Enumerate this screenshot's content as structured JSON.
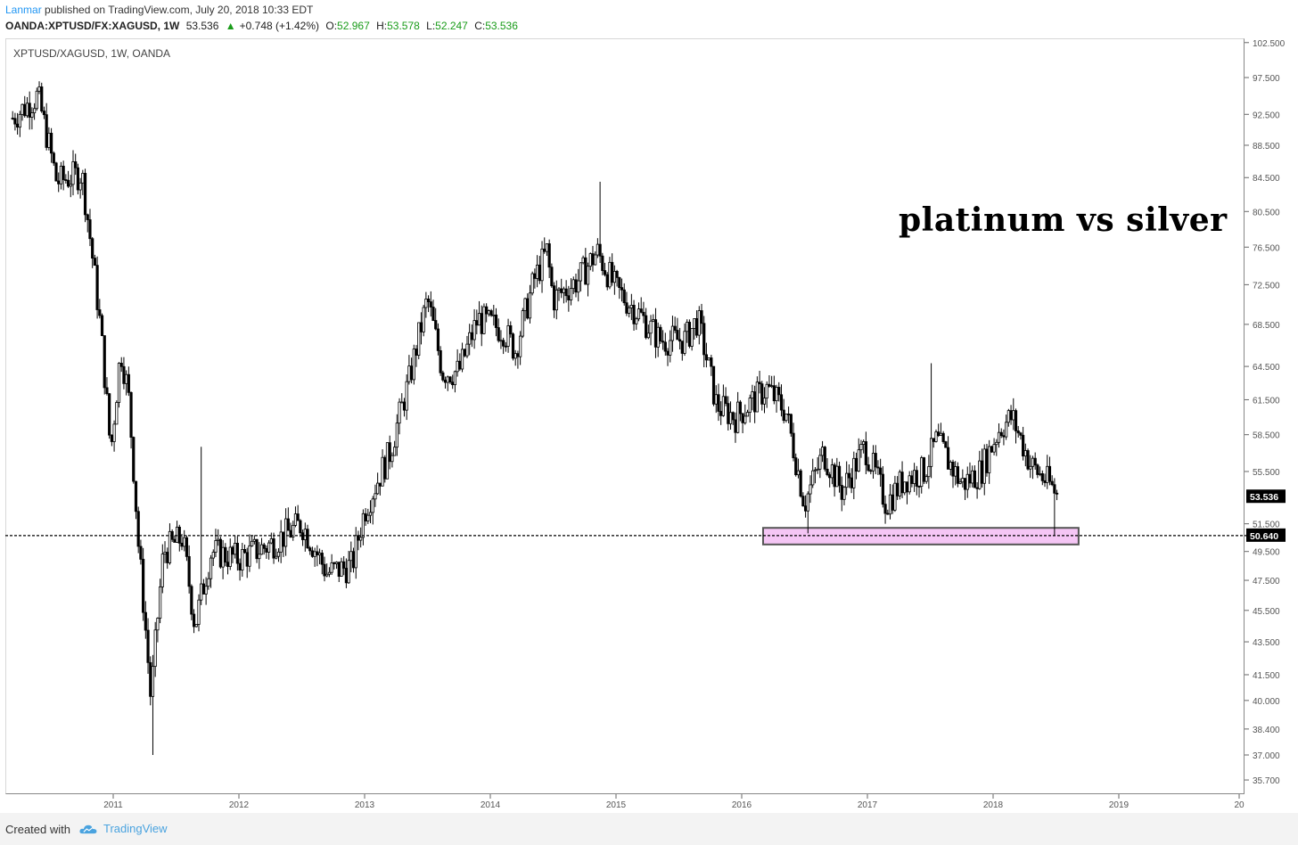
{
  "header": {
    "author": "Lanmar",
    "published_text": "published on TradingView.com, July 20, 2018 10:33 EDT",
    "symbol_line": "OANDA:XPTUSD/FX:XAGUSD, 1W",
    "last": "53.536",
    "change": "+0.748 (+1.42%)",
    "open_label": "O:",
    "open": "52.967",
    "high_label": "H:",
    "high": "53.578",
    "low_label": "L:",
    "low": "52.247",
    "close_label": "C:",
    "close": "53.536"
  },
  "chart": {
    "symbol_title": "XPTUSD/XAGUSD, 1W, OANDA",
    "annotation": "platinum vs silver",
    "last_price_label": "53.536",
    "level_label": "50.640"
  },
  "footer": {
    "created_with": "Created with",
    "brand": "TradingView"
  },
  "colors": {
    "candle": "#000000",
    "support_line": "#000000",
    "support_zone_fill": "#f5c6f5",
    "support_zone_border": "#555555",
    "brand": "#4aa3df",
    "up_text": "#1a9c1a"
  },
  "chart_data": {
    "type": "candlestick",
    "title": "XPTUSD/XAGUSD, 1W, OANDA",
    "xlabel": "",
    "ylabel": "",
    "ylim": [
      35.0,
      102.5
    ],
    "y_scale": "log",
    "x_ticks": [
      "2011",
      "2012",
      "2013",
      "2014",
      "2015",
      "2016",
      "2017",
      "2018",
      "2019",
      "20"
    ],
    "y_ticks": [
      "102.500",
      "97.500",
      "92.500",
      "88.500",
      "84.500",
      "80.500",
      "76.500",
      "72.500",
      "68.500",
      "64.500",
      "61.500",
      "58.500",
      "55.500",
      "53.536",
      "51.500",
      "50.640",
      "49.500",
      "47.500",
      "45.500",
      "43.500",
      "41.500",
      "40.000",
      "38.400",
      "37.000",
      "35.700"
    ],
    "support_level": 50.64,
    "last_close": 53.536,
    "support_zone": {
      "from_year": 2016.17,
      "to_year": 2018.68,
      "low": 50.0,
      "high": 51.2
    },
    "anchors": [
      {
        "t": 2010.2,
        "v": 92.0
      },
      {
        "t": 2010.4,
        "v": 95.0
      },
      {
        "t": 2010.55,
        "v": 84.0
      },
      {
        "t": 2010.75,
        "v": 85.0
      },
      {
        "t": 2010.9,
        "v": 68.0
      },
      {
        "t": 2010.98,
        "v": 57.0
      },
      {
        "t": 2011.06,
        "v": 66.0
      },
      {
        "t": 2011.12,
        "v": 62.0
      },
      {
        "t": 2011.2,
        "v": 50.0
      },
      {
        "t": 2011.3,
        "v": 40.0
      },
      {
        "t": 2011.4,
        "v": 49.5
      },
      {
        "t": 2011.55,
        "v": 50.5
      },
      {
        "t": 2011.65,
        "v": 44.5
      },
      {
        "t": 2011.78,
        "v": 49.5
      },
      {
        "t": 2012.0,
        "v": 49.0
      },
      {
        "t": 2012.25,
        "v": 50.0
      },
      {
        "t": 2012.5,
        "v": 51.5
      },
      {
        "t": 2012.7,
        "v": 48.0
      },
      {
        "t": 2012.9,
        "v": 48.5
      },
      {
        "t": 2013.0,
        "v": 52.5
      },
      {
        "t": 2013.2,
        "v": 57.0
      },
      {
        "t": 2013.35,
        "v": 63.0
      },
      {
        "t": 2013.5,
        "v": 71.0
      },
      {
        "t": 2013.62,
        "v": 64.0
      },
      {
        "t": 2013.75,
        "v": 64.0
      },
      {
        "t": 2013.9,
        "v": 69.0
      },
      {
        "t": 2014.1,
        "v": 68.0
      },
      {
        "t": 2014.2,
        "v": 66.0
      },
      {
        "t": 2014.35,
        "v": 73.0
      },
      {
        "t": 2014.45,
        "v": 76.0
      },
      {
        "t": 2014.5,
        "v": 71.0
      },
      {
        "t": 2014.7,
        "v": 73.0
      },
      {
        "t": 2014.85,
        "v": 76.0
      },
      {
        "t": 2015.0,
        "v": 72.0
      },
      {
        "t": 2015.15,
        "v": 70.0
      },
      {
        "t": 2015.35,
        "v": 67.0
      },
      {
        "t": 2015.55,
        "v": 67.0
      },
      {
        "t": 2015.65,
        "v": 69.0
      },
      {
        "t": 2015.8,
        "v": 61.0
      },
      {
        "t": 2015.95,
        "v": 60.0
      },
      {
        "t": 2016.2,
        "v": 62.5
      },
      {
        "t": 2016.35,
        "v": 60.5
      },
      {
        "t": 2016.5,
        "v": 53.0
      },
      {
        "t": 2016.65,
        "v": 57.0
      },
      {
        "t": 2016.8,
        "v": 54.0
      },
      {
        "t": 2016.98,
        "v": 57.5
      },
      {
        "t": 2017.15,
        "v": 53.0
      },
      {
        "t": 2017.3,
        "v": 55.0
      },
      {
        "t": 2017.45,
        "v": 55.5
      },
      {
        "t": 2017.55,
        "v": 58.0
      },
      {
        "t": 2017.75,
        "v": 54.5
      },
      {
        "t": 2017.9,
        "v": 55.5
      },
      {
        "t": 2018.05,
        "v": 59.0
      },
      {
        "t": 2018.15,
        "v": 60.0
      },
      {
        "t": 2018.3,
        "v": 56.0
      },
      {
        "t": 2018.45,
        "v": 54.5
      },
      {
        "t": 2018.52,
        "v": 53.5
      }
    ],
    "spikes": [
      {
        "t": 2011.32,
        "low": 37.0
      },
      {
        "t": 2011.7,
        "high": 57.5
      },
      {
        "t": 2014.88,
        "high": 84.0
      },
      {
        "t": 2016.52,
        "low": 50.8
      },
      {
        "t": 2017.5,
        "high": 64.8
      },
      {
        "t": 2018.48,
        "low": 50.6
      }
    ]
  }
}
